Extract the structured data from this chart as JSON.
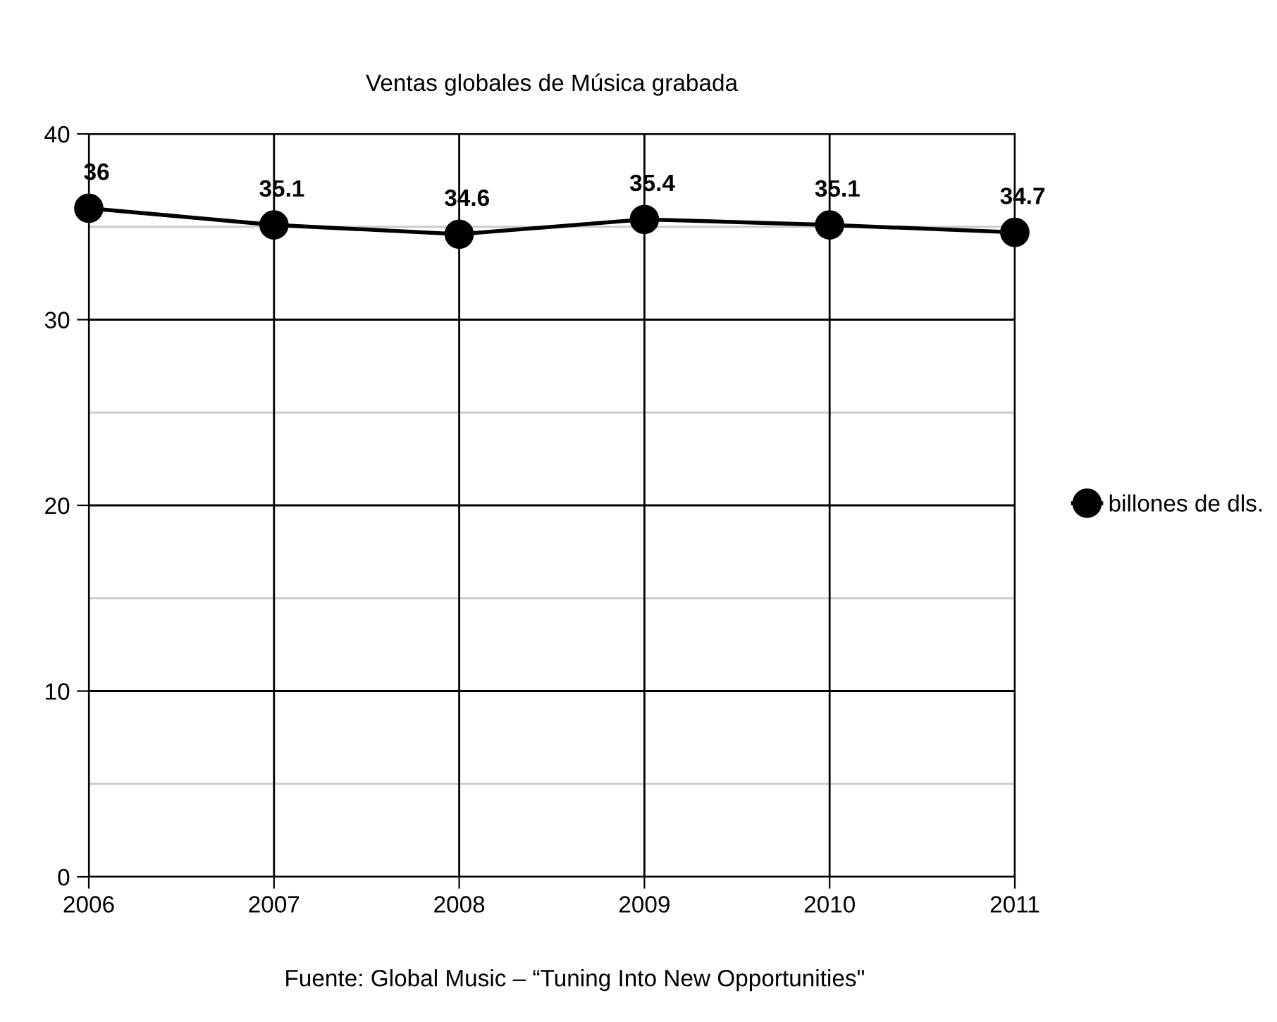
{
  "chart_data": {
    "type": "line",
    "title": "Ventas globales de Música grabada",
    "categories": [
      "2006",
      "2007",
      "2008",
      "2009",
      "2010",
      "2011"
    ],
    "series": [
      {
        "name": "billones de dls.",
        "color": "#000000",
        "values": [
          36,
          35.1,
          34.6,
          35.4,
          35.1,
          34.7
        ]
      }
    ],
    "ylim": [
      0,
      40
    ],
    "yticks": [
      0,
      {
        "value": 5,
        "label": null
      },
      10,
      {
        "value": 15,
        "label": null
      },
      20,
      {
        "value": 25,
        "label": null
      },
      30,
      {
        "value": 35,
        "label": null
      },
      40
    ],
    "grid": true,
    "legend": "right",
    "marker": "circle",
    "line_style": "solid",
    "data_labels": true,
    "annotations": [
      "Fuente: Global Music – “Tuning Into New Opportunities\""
    ]
  }
}
